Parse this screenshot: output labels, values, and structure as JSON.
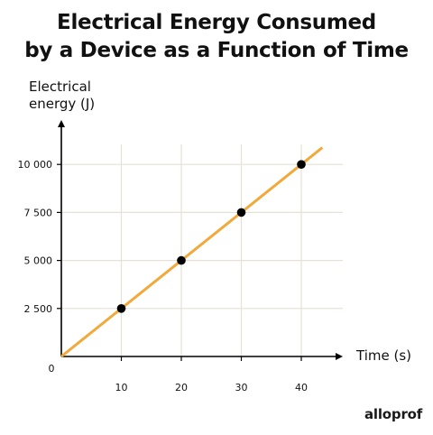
{
  "title": {
    "line1": "Electrical Energy Consumed",
    "line2": "by a Device as a Function of Time"
  },
  "brand": "alloprof",
  "colors": {
    "line": "#f2a93b",
    "points": "#000000",
    "grid": "#e6e1d6",
    "axes": "#000000"
  },
  "chart_data": {
    "type": "line",
    "title": "Electrical Energy Consumed by a Device as a Function of Time",
    "xlabel": "Time (s)",
    "ylabel_lines": [
      "Electrical",
      "energy (J)"
    ],
    "origin_label": "0",
    "x_ticks": [
      10,
      20,
      30,
      40
    ],
    "x_tick_labels": [
      "10",
      "20",
      "30",
      "40"
    ],
    "y_ticks": [
      2500,
      5000,
      7500,
      10000
    ],
    "y_tick_labels": [
      "2 500",
      "5 000",
      "7 500",
      "10 000"
    ],
    "xlim": [
      0,
      45
    ],
    "ylim": [
      0,
      11500
    ],
    "grid": true,
    "series": [
      {
        "points": [
          [
            10,
            2500
          ],
          [
            20,
            5000
          ],
          [
            30,
            7500
          ],
          [
            40,
            10000
          ]
        ],
        "line": [
          [
            0,
            0
          ],
          [
            43.5,
            10875
          ]
        ]
      }
    ]
  }
}
